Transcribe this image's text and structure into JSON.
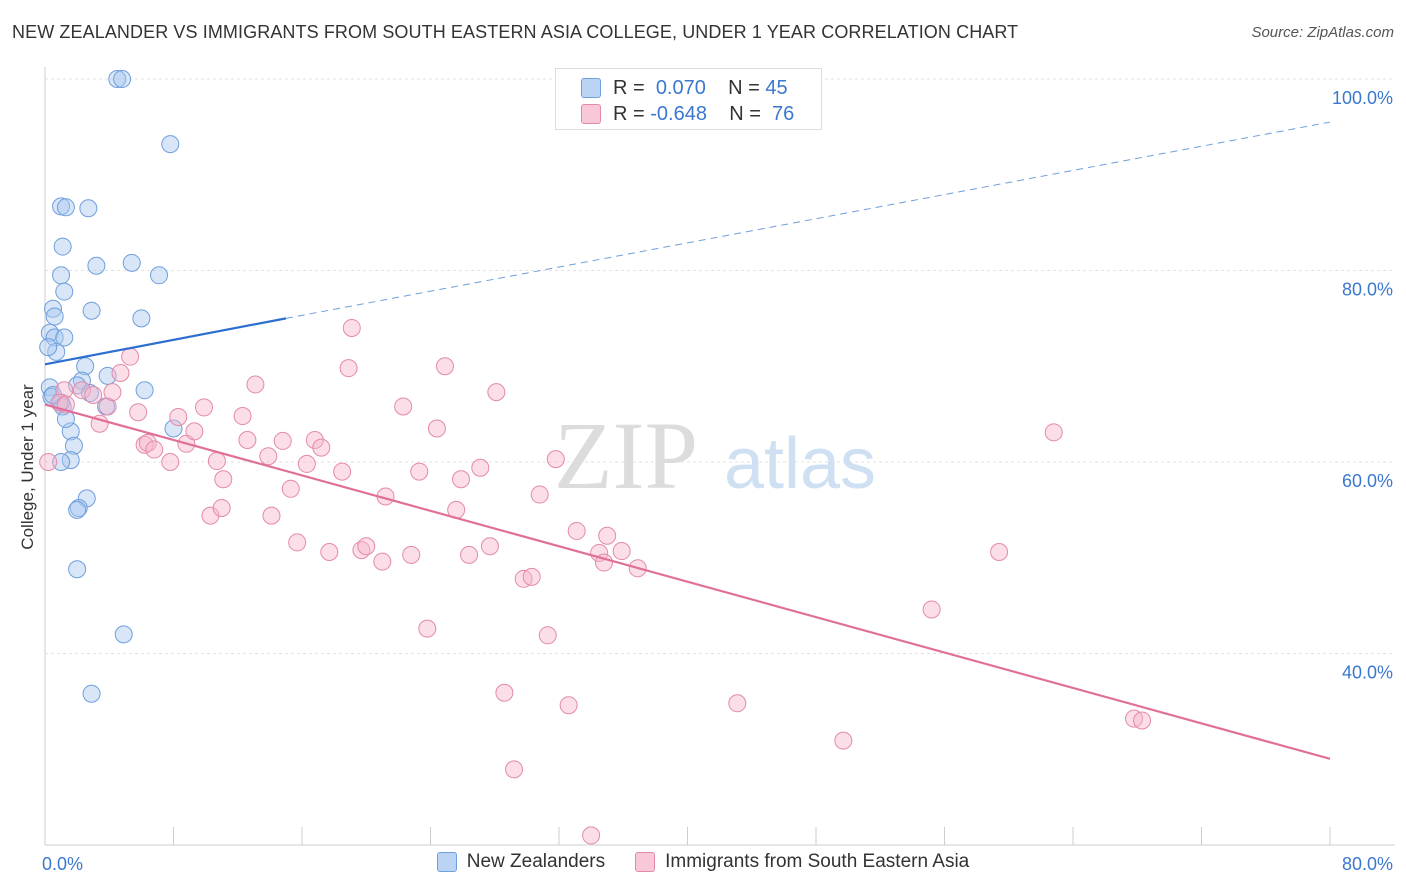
{
  "title": "NEW ZEALANDER VS IMMIGRANTS FROM SOUTH EASTERN ASIA COLLEGE, UNDER 1 YEAR CORRELATION CHART",
  "source": "Source: ZipAtlas.com",
  "watermark": {
    "zip": "ZIP",
    "atlas": "atlas"
  },
  "stats": [
    {
      "r_label": "R =",
      "r_value": "0.070",
      "n_label": "N =",
      "n_value": "45",
      "color": "#a9c8f0",
      "stroke": "#6f9fdc"
    },
    {
      "r_label": "R =",
      "r_value": "-0.648",
      "n_label": "N =",
      "n_value": "76",
      "color": "#f7b6cb",
      "stroke": "#e48aa8"
    }
  ],
  "legend": [
    {
      "label": "New Zealanders",
      "color": "#a9c8f0",
      "stroke": "#6f9fdc"
    },
    {
      "label": "Immigrants from South Eastern Asia",
      "color": "#f7b6cb",
      "stroke": "#e48aa8"
    }
  ],
  "chart_data": {
    "type": "scatter",
    "title": "NEW ZEALANDER VS IMMIGRANTS FROM SOUTH EASTERN ASIA COLLEGE, UNDER 1 YEAR CORRELATION CHART",
    "xlabel": "",
    "ylabel": "College, Under 1 year",
    "xlim": [
      0,
      80
    ],
    "ylim": [
      20,
      100
    ],
    "x_tick_labels": [
      "0.0%",
      "80.0%"
    ],
    "y_ticks": [
      40,
      60,
      80,
      100
    ],
    "y_tick_labels": [
      "40.0%",
      "60.0%",
      "80.0%",
      "100.0%"
    ],
    "grid": true,
    "series": [
      {
        "name": "New Zealanders",
        "color": "#a9c8f0",
        "stroke": "#6f9fdc",
        "points": [
          [
            4.5,
            100.0
          ],
          [
            4.8,
            100.0
          ],
          [
            7.8,
            93.2
          ],
          [
            1.0,
            86.7
          ],
          [
            1.3,
            86.6
          ],
          [
            2.7,
            86.5
          ],
          [
            1.1,
            82.5
          ],
          [
            3.2,
            80.5
          ],
          [
            5.4,
            80.8
          ],
          [
            7.1,
            79.5
          ],
          [
            1.0,
            79.5
          ],
          [
            1.2,
            77.8
          ],
          [
            2.9,
            75.8
          ],
          [
            0.5,
            76.0
          ],
          [
            0.6,
            75.2
          ],
          [
            6.0,
            75.0
          ],
          [
            0.3,
            73.5
          ],
          [
            0.6,
            73.0
          ],
          [
            1.2,
            73.0
          ],
          [
            0.7,
            71.5
          ],
          [
            2.5,
            70.0
          ],
          [
            0.3,
            67.8
          ],
          [
            2.3,
            68.5
          ],
          [
            3.9,
            69.0
          ],
          [
            2.0,
            68.0
          ],
          [
            0.4,
            66.8
          ],
          [
            1.0,
            66.2
          ],
          [
            6.2,
            67.5
          ],
          [
            1.1,
            65.8
          ],
          [
            3.8,
            65.8
          ],
          [
            1.6,
            63.2
          ],
          [
            8.0,
            63.5
          ],
          [
            1.8,
            61.7
          ],
          [
            1.6,
            60.2
          ],
          [
            1.0,
            60.0
          ],
          [
            2.6,
            56.2
          ],
          [
            2.1,
            55.2
          ],
          [
            2.0,
            55.0
          ],
          [
            2.0,
            48.8
          ],
          [
            4.9,
            42.0
          ],
          [
            2.9,
            35.8
          ],
          [
            0.5,
            67.0
          ],
          [
            1.3,
            64.5
          ],
          [
            2.8,
            67.2
          ],
          [
            0.2,
            72.0
          ]
        ],
        "trend": {
          "x": [
            0.0,
            15.0
          ],
          "y": [
            70.2,
            75.0
          ],
          "dashed_extension": {
            "x": [
              15.0,
              80.0
            ],
            "y": [
              75.0,
              95.5
            ]
          }
        }
      },
      {
        "name": "Immigrants from South Eastern Asia",
        "color": "#f7b6cb",
        "stroke": "#e48aa8",
        "points": [
          [
            0.2,
            60.0
          ],
          [
            1.2,
            67.5
          ],
          [
            0.9,
            66.2
          ],
          [
            1.3,
            66.0
          ],
          [
            2.3,
            67.5
          ],
          [
            3.0,
            67.0
          ],
          [
            3.9,
            65.8
          ],
          [
            4.2,
            67.3
          ],
          [
            4.7,
            69.3
          ],
          [
            5.3,
            71.0
          ],
          [
            3.4,
            64.0
          ],
          [
            5.8,
            65.2
          ],
          [
            6.2,
            61.8
          ],
          [
            6.4,
            62.0
          ],
          [
            6.8,
            61.3
          ],
          [
            7.8,
            60.0
          ],
          [
            8.3,
            64.7
          ],
          [
            8.8,
            61.9
          ],
          [
            9.3,
            63.2
          ],
          [
            9.9,
            65.7
          ],
          [
            10.7,
            60.1
          ],
          [
            11.1,
            58.2
          ],
          [
            10.3,
            54.4
          ],
          [
            11.0,
            55.2
          ],
          [
            12.3,
            64.8
          ],
          [
            12.6,
            62.3
          ],
          [
            13.1,
            68.1
          ],
          [
            13.9,
            60.6
          ],
          [
            14.1,
            54.4
          ],
          [
            14.8,
            62.2
          ],
          [
            15.3,
            57.2
          ],
          [
            15.7,
            51.6
          ],
          [
            16.3,
            59.8
          ],
          [
            16.8,
            62.3
          ],
          [
            17.2,
            61.5
          ],
          [
            17.7,
            50.6
          ],
          [
            18.5,
            59.0
          ],
          [
            19.1,
            74.0
          ],
          [
            18.9,
            69.8
          ],
          [
            19.7,
            50.8
          ],
          [
            20.0,
            51.2
          ],
          [
            21.0,
            49.6
          ],
          [
            21.2,
            56.4
          ],
          [
            22.3,
            65.8
          ],
          [
            22.8,
            50.3
          ],
          [
            23.3,
            59.0
          ],
          [
            23.8,
            42.6
          ],
          [
            24.4,
            63.5
          ],
          [
            24.9,
            70.0
          ],
          [
            25.6,
            55.0
          ],
          [
            25.9,
            58.2
          ],
          [
            26.4,
            50.3
          ],
          [
            27.1,
            59.4
          ],
          [
            27.7,
            51.2
          ],
          [
            28.1,
            67.3
          ],
          [
            28.6,
            35.9
          ],
          [
            29.2,
            27.9
          ],
          [
            29.8,
            47.8
          ],
          [
            30.3,
            48.0
          ],
          [
            30.8,
            56.6
          ],
          [
            31.3,
            41.9
          ],
          [
            31.8,
            60.3
          ],
          [
            32.6,
            34.6
          ],
          [
            33.1,
            52.8
          ],
          [
            34.5,
            50.5
          ],
          [
            34.8,
            49.5
          ],
          [
            35.0,
            52.3
          ],
          [
            35.9,
            50.7
          ],
          [
            36.9,
            48.9
          ],
          [
            34.0,
            21.0
          ],
          [
            43.1,
            34.8
          ],
          [
            49.7,
            30.9
          ],
          [
            55.2,
            44.6
          ],
          [
            59.4,
            50.6
          ],
          [
            62.8,
            63.1
          ],
          [
            67.8,
            33.2
          ],
          [
            68.3,
            33.0
          ]
        ],
        "trend": {
          "x": [
            0.0,
            80.0
          ],
          "y": [
            66.0,
            29.0
          ]
        }
      }
    ]
  }
}
